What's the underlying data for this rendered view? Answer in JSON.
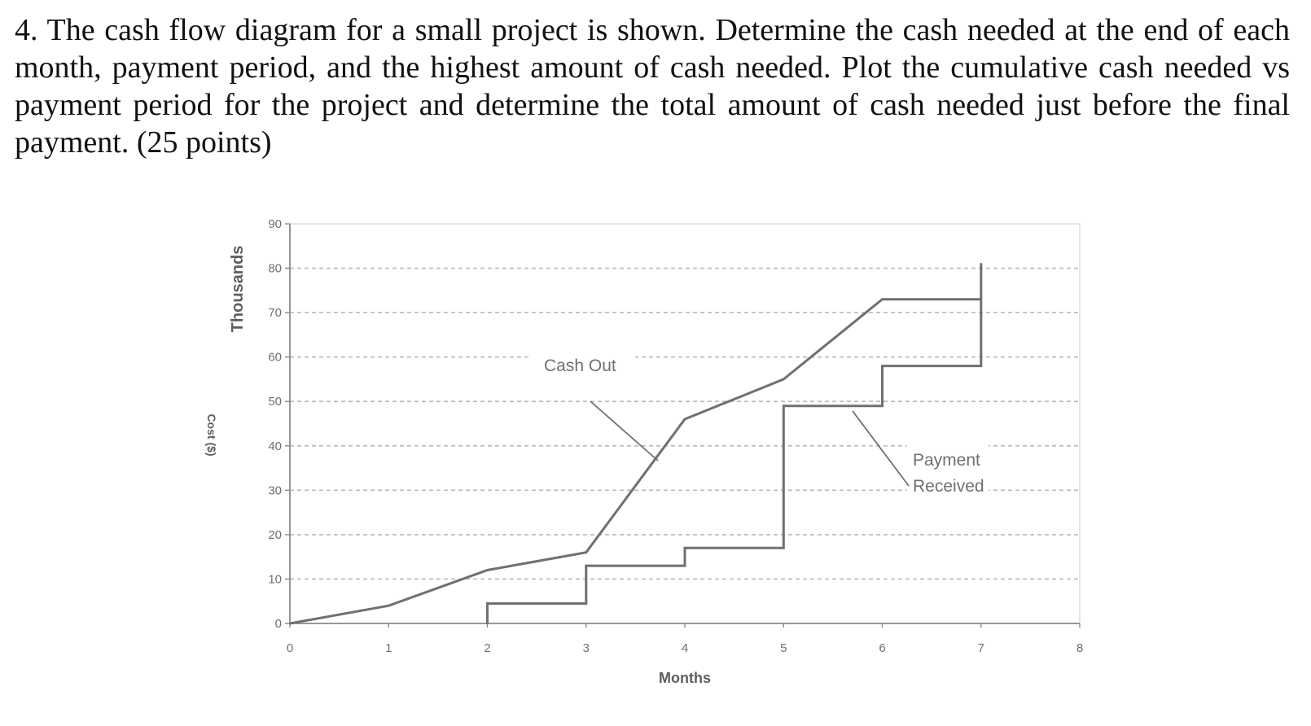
{
  "question": {
    "text": "4. The cash flow diagram for a small project is shown. Determine the cash needed at the end of each month, payment period, and the highest amount of cash needed. Plot the cumulative cash needed vs payment period for the project and determine the total amount of cash needed just before the final payment. (25 points)"
  },
  "chart_data": {
    "type": "line",
    "title": "",
    "xlabel": "Months",
    "ylabel": "Cost ($)",
    "ylabel_units": "Thousands",
    "xlim": [
      0,
      8
    ],
    "ylim": [
      0,
      90
    ],
    "x_ticks": [
      "0",
      "1",
      "2",
      "3",
      "4",
      "5",
      "6",
      "7",
      "8"
    ],
    "y_ticks": [
      "0",
      "10",
      "20",
      "30",
      "40",
      "50",
      "60",
      "70",
      "80",
      "90"
    ],
    "grid": "horizontal dashed",
    "line_color": "#707070",
    "grid_color": "#b9b9b9",
    "series": [
      {
        "name": "Cash Out",
        "style": "line",
        "x": [
          0,
          1,
          2,
          3,
          4,
          5,
          6,
          7
        ],
        "y": [
          0,
          4,
          12,
          16,
          46,
          55,
          73,
          73
        ]
      },
      {
        "name": "Payment Received",
        "style": "step",
        "x": [
          2,
          2,
          3,
          3,
          4,
          4,
          5,
          5,
          6,
          6,
          7,
          7,
          7
        ],
        "y": [
          0,
          4.5,
          4.5,
          13,
          13,
          17,
          17,
          49,
          49,
          58,
          58,
          73,
          81
        ]
      }
    ],
    "annotations": [
      {
        "text": "Cash Out",
        "series": "Cash Out"
      },
      {
        "text": "Payment",
        "series": "Payment Received"
      },
      {
        "text": "Received",
        "series": "Payment Received"
      }
    ]
  }
}
